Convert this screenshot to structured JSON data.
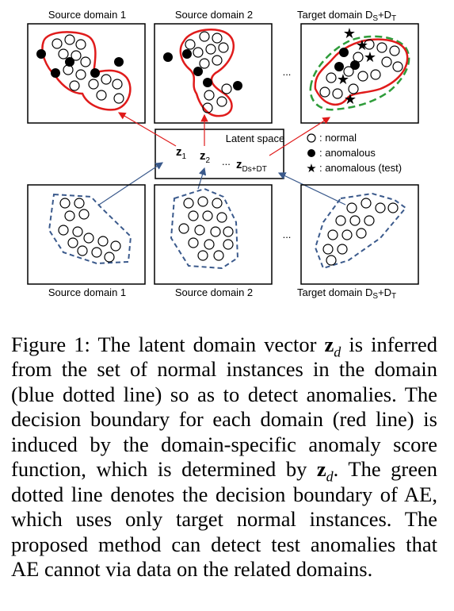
{
  "figure": {
    "top_labels": [
      "Source domain 1",
      "Source domain 2",
      "Target domain D",
      "S",
      "+D",
      "T"
    ],
    "bottom_labels": [
      "Source domain 1",
      "Source domain 2",
      "Target domain D",
      "S",
      "+D",
      "T"
    ],
    "ellipsis": "...",
    "latent_title": "Latent space",
    "z_symbol": "z",
    "z1_sub": "1",
    "z2_sub": "2",
    "z_dots": "...",
    "zt_sub": "Ds+DT",
    "legend": {
      "normal": ": normal",
      "anomalous": ": anomalous",
      "anomalous_test": ": anomalous (test)"
    },
    "colors": {
      "red_boundary": "#e01b1b",
      "blue_boundary": "#3b5a8c",
      "green_boundary": "#2e9c3a"
    }
  },
  "caption": {
    "prefix": "Figure 1: The latent domain vector ",
    "vec": "z",
    "vec_sub": "d",
    "part1": " is inferred from the set of normal instances in the domain (blue dotted line) so as to detect anomalies. The decision boundary for each domain (red line) is induced by the domain-specific anomaly score function, which is determined by ",
    "part2": ". The green dotted line denotes the decision boundary of AE, which uses only target normal instances. The proposed method can detect test anomalies that AE cannot via data on the related domains."
  }
}
